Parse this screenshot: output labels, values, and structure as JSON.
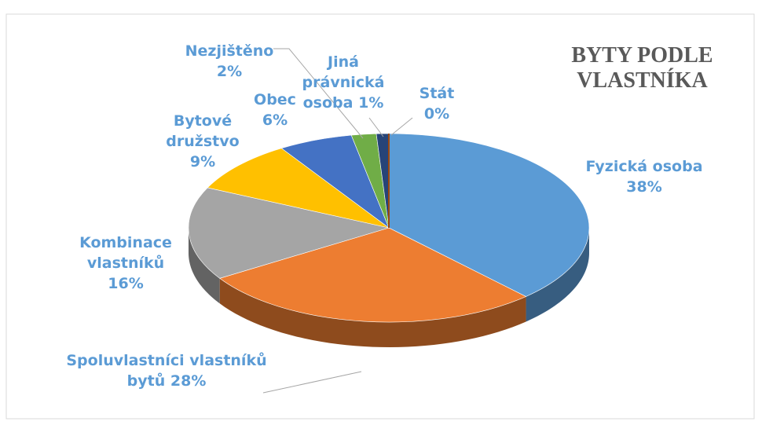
{
  "chart_data": {
    "type": "pie",
    "title": "BYTY PODLE VLASTNÍKA",
    "categories": [
      "Fyzická osoba",
      "Spoluvlastníci vlastníků bytů",
      "Kombinace vlastníků",
      "Bytové družstvo",
      "Obec",
      "Nezjištěno",
      "Jiná právnická osoba",
      "Stát"
    ],
    "values": [
      38,
      28,
      16,
      9,
      6,
      2,
      1,
      0
    ],
    "value_labels": [
      "38%",
      "28%",
      "16%",
      "9%",
      "6%",
      "2%",
      "1%",
      "0%"
    ],
    "colors": [
      "#5b9bd5",
      "#ed7d31",
      "#a5a5a5",
      "#ffc000",
      "#4472c4",
      "#70ad47",
      "#264478",
      "#9e480e"
    ]
  }
}
